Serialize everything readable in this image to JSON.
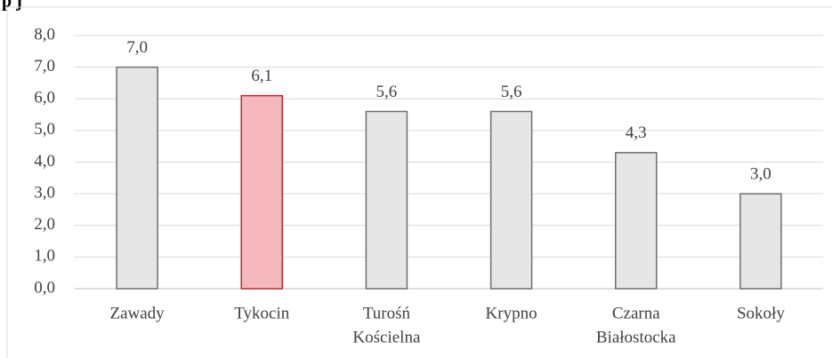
{
  "top_fragment": "p   j",
  "chart_data": {
    "type": "bar",
    "categories": [
      "Zawady",
      "Tykocin",
      "Turośń Kościelna",
      "Krypno",
      "Czarna Białostocka",
      "Sokoły"
    ],
    "category_lines": [
      [
        "Zawady"
      ],
      [
        "Tykocin"
      ],
      [
        "Turośń",
        "Kościelna"
      ],
      [
        "Krypno"
      ],
      [
        "Czarna",
        "Białostocka"
      ],
      [
        "Sokoły"
      ]
    ],
    "values": [
      7.0,
      6.1,
      5.6,
      5.6,
      4.3,
      3.0
    ],
    "value_labels": [
      "7,0",
      "6,1",
      "5,6",
      "5,6",
      "4,3",
      "3,0"
    ],
    "highlight_index": 1,
    "ylim": [
      0,
      8
    ],
    "yticks": [
      "0,0",
      "1,0",
      "2,0",
      "3,0",
      "4,0",
      "5,0",
      "6,0",
      "7,0",
      "8,0"
    ],
    "grid": true,
    "colors": {
      "bar_fill": "#e6e6e6",
      "bar_stroke": "#6e6e6e",
      "highlight_fill": "#f4b9bc",
      "highlight_stroke": "#c0272d",
      "grid": "#d9d9d9",
      "axis": "#bfbfbf"
    }
  }
}
